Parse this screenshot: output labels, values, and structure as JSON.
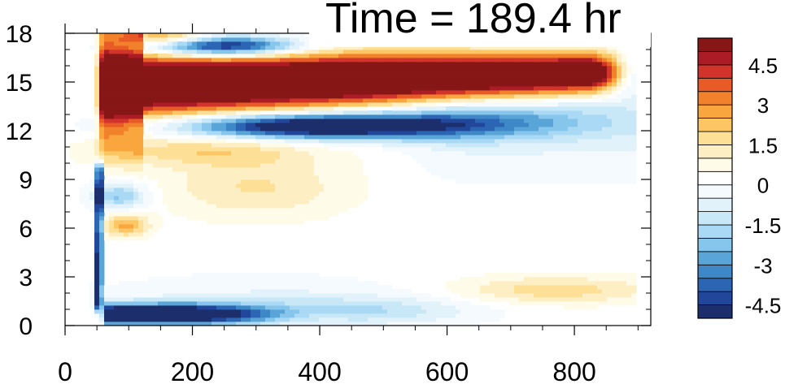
{
  "chart_data": {
    "type": "heatmap",
    "title": "Time = 189.4 hr",
    "xlabel": "",
    "ylabel": "",
    "xlim": [
      0,
      920
    ],
    "ylim": [
      0,
      18
    ],
    "x_ticks": [
      0,
      200,
      400,
      600,
      800
    ],
    "x_tick_labels": [
      "0",
      "200",
      "400",
      "600",
      "800"
    ],
    "y_ticks": [
      0,
      3,
      6,
      9,
      12,
      15,
      18
    ],
    "y_tick_labels": [
      "0",
      "3",
      "6",
      "9",
      "12",
      "15",
      "18"
    ],
    "colorbar": {
      "levels": [
        -5.0,
        -4.5,
        -4.0,
        -3.5,
        -3.0,
        -2.5,
        -2.0,
        -1.5,
        -1.0,
        -0.5,
        0.0,
        0.5,
        1.0,
        1.5,
        2.0,
        2.5,
        3.0,
        3.5,
        4.0,
        4.5,
        5.0
      ],
      "tick_values": [
        -4.5,
        -3,
        -1.5,
        0,
        1.5,
        3,
        4.5
      ],
      "tick_labels": [
        "-4.5",
        "-3",
        "-1.5",
        "0",
        "1.5",
        "3",
        "4.5"
      ],
      "colors": [
        "#1c2e6b",
        "#22479a",
        "#2c65b4",
        "#3f88c8",
        "#5aa5d8",
        "#86c6ec",
        "#a9d9f4",
        "#c8e8f8",
        "#e2f2fb",
        "#f4fafd",
        "#ffffff",
        "#fffbe9",
        "#fdefc3",
        "#fde095",
        "#fcc665",
        "#f9a63e",
        "#f2812b",
        "#e85a26",
        "#d2332a",
        "#ab1c26",
        "#861716"
      ]
    },
    "features": [
      {
        "name": "upper positive jet",
        "sign": "positive",
        "x_start": 50,
        "x_end": 880,
        "y_center": 15.0,
        "peak_value": 5.5
      },
      {
        "name": "upper negative band",
        "sign": "negative",
        "x_start": 200,
        "x_end": 600,
        "y_center": 12.3,
        "peak_value": -5.0
      },
      {
        "name": "top negative band",
        "sign": "negative",
        "x_start": 130,
        "x_end": 360,
        "y_center": 17.3,
        "peak_value": -5.0
      },
      {
        "name": "near-surface negative layer",
        "sign": "negative",
        "x_start": 60,
        "x_end": 400,
        "y_center": 0.6,
        "peak_value": -5.5
      },
      {
        "name": "vertical negative front",
        "sign": "negative",
        "x_start": 45,
        "x_end": 65,
        "y_center": 5.0,
        "peak_value": -5.0
      },
      {
        "name": "weak positive anomaly",
        "sign": "positive",
        "x_start": 100,
        "x_end": 400,
        "y_center": 10.5,
        "peak_value": 1.5
      },
      {
        "name": "weak positive patch",
        "sign": "positive",
        "x_start": 700,
        "x_end": 880,
        "y_center": 2.0,
        "peak_value": 1.5
      }
    ]
  }
}
